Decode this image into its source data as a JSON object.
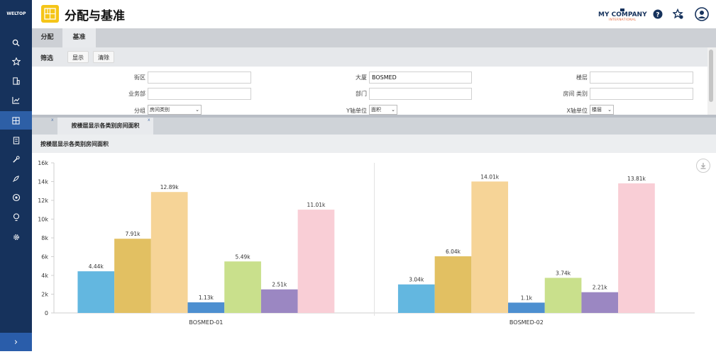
{
  "brand": {
    "logo_text": "WELTOP"
  },
  "sidebar": {
    "icons": [
      "search-icon",
      "star-icon",
      "building-icon",
      "chart-icon",
      "grid-icon",
      "document-icon",
      "wrench-icon",
      "rocket-icon",
      "target-icon",
      "lightbulb-icon",
      "gear-icon"
    ],
    "active_index": 4,
    "expand_glyph": "›"
  },
  "header": {
    "title": "分配与基准",
    "company_name": "MY COMPANY",
    "company_sub": "INTERNATIONAL",
    "help_glyph": "?",
    "accent": "#16325c",
    "badge_color": "#f5c518"
  },
  "tabs": [
    {
      "label": "分配",
      "active": false
    },
    {
      "label": "基准",
      "active": true
    }
  ],
  "filter": {
    "title": "筛选",
    "show_label": "显示",
    "clear_label": "清除"
  },
  "form": {
    "street_label": "街区",
    "street_value": "",
    "building_label": "大厦",
    "building_value": "BOSMED",
    "floor_label": "楼层",
    "floor_value": "",
    "department_label": "业务部",
    "department_value": "",
    "dept_label": "部门",
    "dept_value": "",
    "roomtype_label": "房间 类别",
    "roomtype_value": "",
    "group_label": "分组",
    "group_value": "房间类别",
    "yunit_label": "Y轴单位",
    "yunit_value": "面积",
    "xunit_label": "X轴单位",
    "xunit_value": "楼层"
  },
  "chart_tab": {
    "label": "按楼层显示各类别房间面积",
    "close_glyph": "x"
  },
  "panel": {
    "title": "按楼层显示各类别房间面积"
  },
  "chart_data": {
    "type": "bar",
    "categories": [
      "BOSMED-01",
      "BOSMED-02"
    ],
    "ylim": [
      0,
      16000
    ],
    "yticks": [
      0,
      2000,
      4000,
      6000,
      8000,
      10000,
      12000,
      14000,
      16000
    ],
    "ytick_labels": [
      "0",
      "2k",
      "4k",
      "6k",
      "8k",
      "10k",
      "12k",
      "14k",
      "16k"
    ],
    "series": [
      {
        "color": "#63b7e0",
        "values": [
          4440,
          3040
        ],
        "labels": [
          "4.44k",
          "3.04k"
        ]
      },
      {
        "color": "#e2c062",
        "values": [
          7910,
          6040
        ],
        "labels": [
          "7.91k",
          "6.04k"
        ]
      },
      {
        "color": "#f6d497",
        "values": [
          12890,
          14010
        ],
        "labels": [
          "12.89k",
          "14.01k"
        ]
      },
      {
        "color": "#4d8fd0",
        "values": [
          1130,
          1100
        ],
        "labels": [
          "1.13k",
          "1.1k"
        ]
      },
      {
        "color": "#c9e08c",
        "values": [
          5490,
          3740
        ],
        "labels": [
          "5.49k",
          "3.74k"
        ]
      },
      {
        "color": "#9b87c2",
        "values": [
          2510,
          2210
        ],
        "labels": [
          "2.51k",
          "2.21k"
        ]
      },
      {
        "color": "#f9ced6",
        "values": [
          11010,
          13810
        ],
        "labels": [
          "11.01k",
          "13.81k"
        ]
      }
    ],
    "grid": false,
    "legend": "none"
  }
}
